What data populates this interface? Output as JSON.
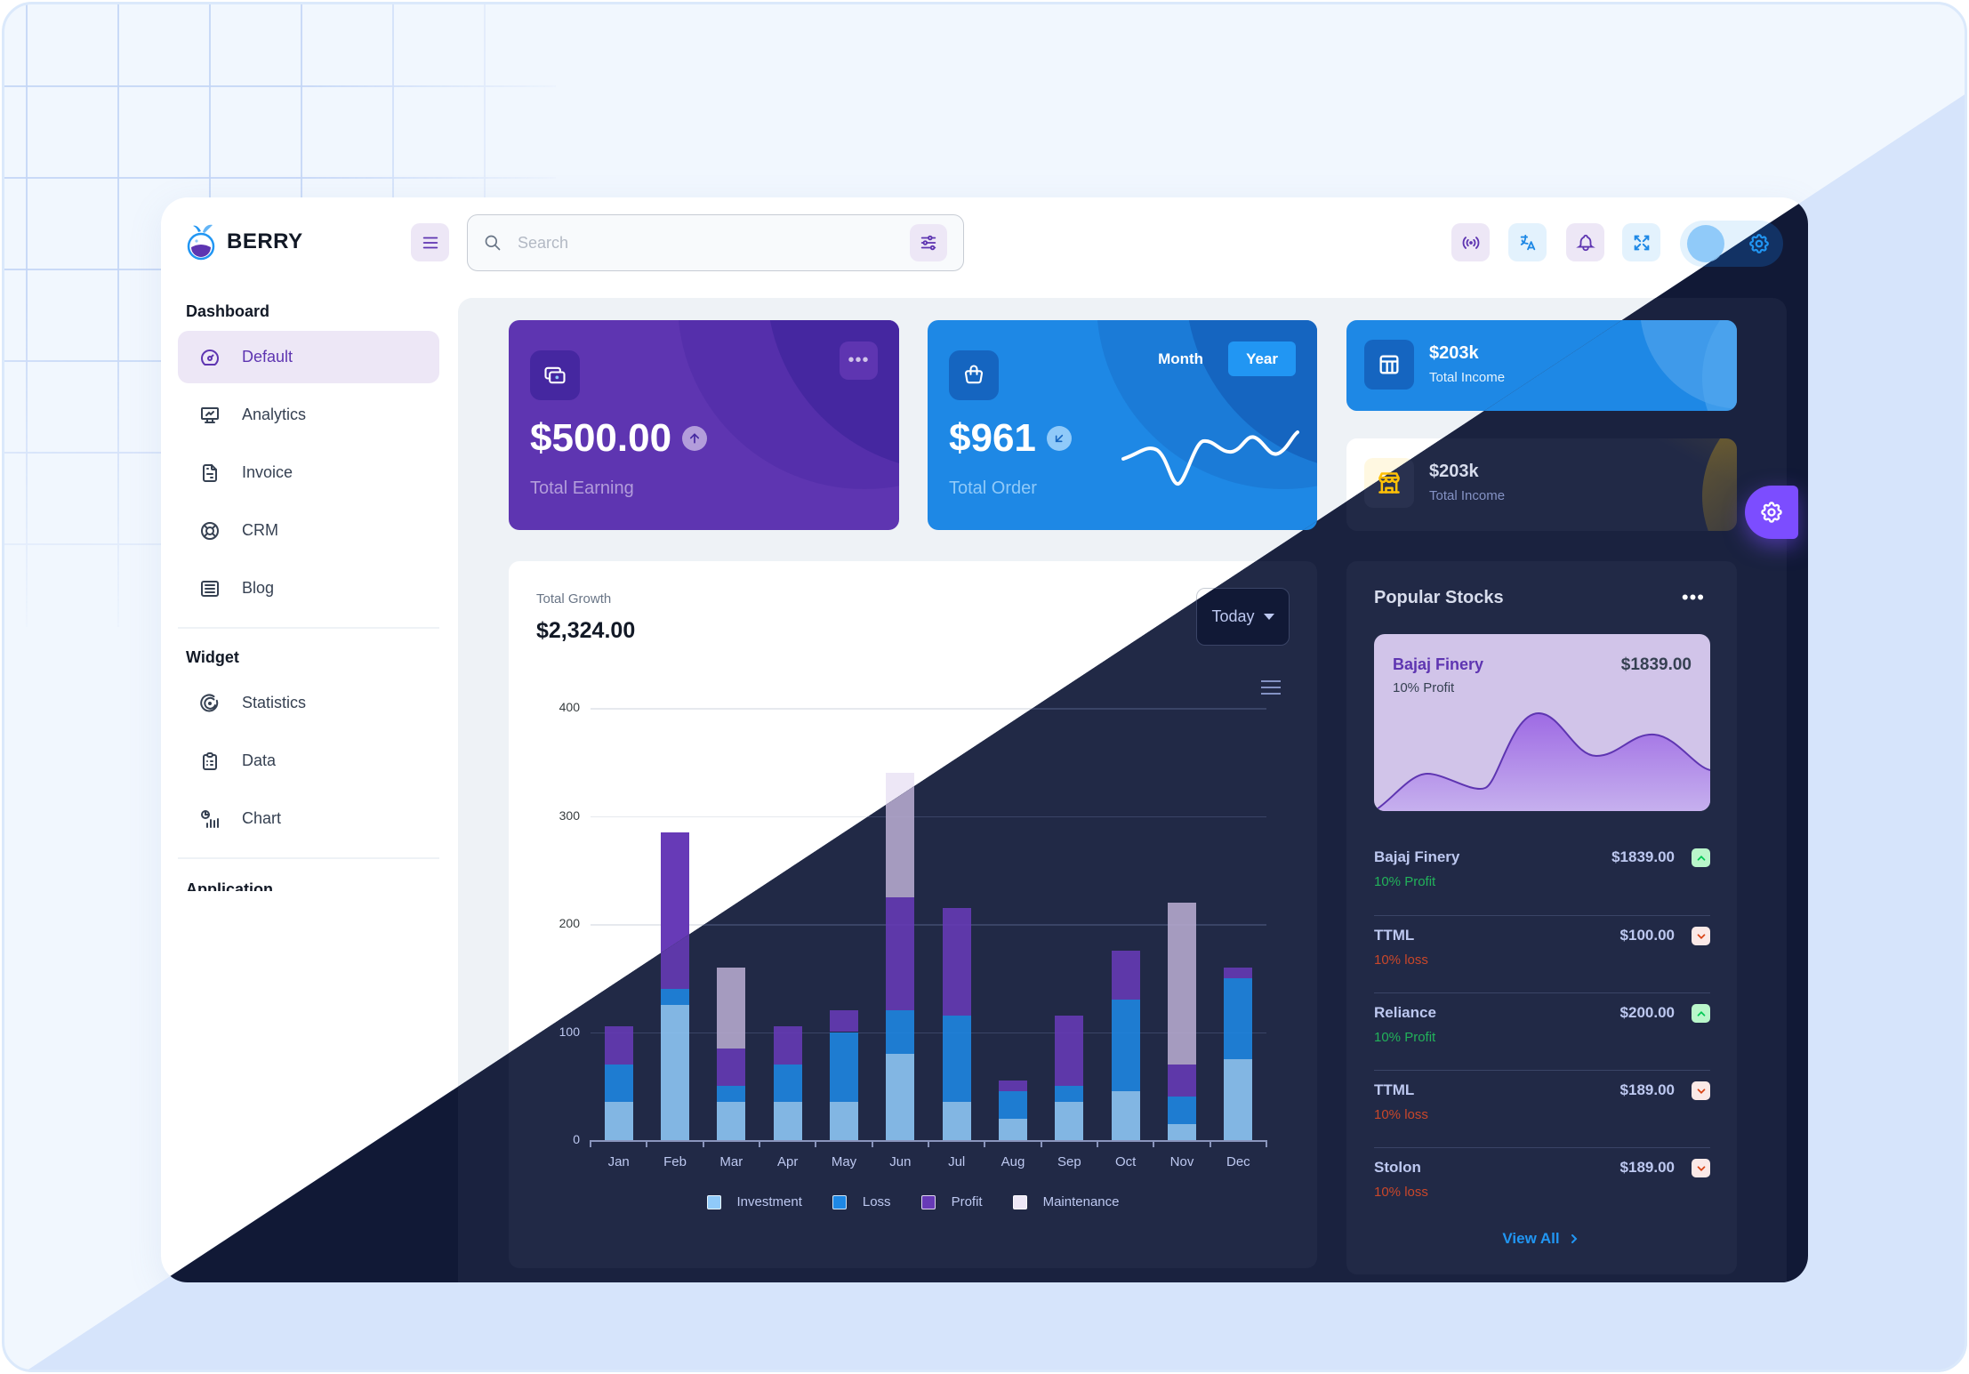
{
  "brand": {
    "name": "BERRY"
  },
  "header": {
    "search_placeholder": "Search",
    "icons": [
      "live-broadcast-icon",
      "translate-icon",
      "notification-bell-icon",
      "fullscreen-icon"
    ]
  },
  "sidebar": {
    "sections": [
      {
        "title": "Dashboard",
        "items": [
          {
            "label": "Default",
            "icon": "dashboard-gauge-icon",
            "active": true
          },
          {
            "label": "Analytics",
            "icon": "device-analytics-icon"
          },
          {
            "label": "Invoice",
            "icon": "file-invoice-icon"
          },
          {
            "label": "CRM",
            "icon": "lifebuoy-icon"
          },
          {
            "label": "Blog",
            "icon": "article-icon"
          }
        ]
      },
      {
        "title": "Widget",
        "items": [
          {
            "label": "Statistics",
            "icon": "chart-arcs-icon"
          },
          {
            "label": "Data",
            "icon": "clipboard-data-icon"
          },
          {
            "label": "Chart",
            "icon": "chart-infographic-icon"
          }
        ]
      }
    ],
    "partial_section": "Application"
  },
  "cards": {
    "earning": {
      "value": "$500.00",
      "label": "Total Earning",
      "trend": "up"
    },
    "order": {
      "value": "$961",
      "label": "Total Order",
      "trend": "down",
      "toggle": [
        "Month",
        "Year"
      ],
      "toggle_active": "Year"
    },
    "income_primary": {
      "value": "$203k",
      "label": "Total Income"
    },
    "income_secondary": {
      "value": "$203k",
      "label": "Total Income"
    }
  },
  "growth": {
    "subtitle": "Total Growth",
    "total": "$2,324.00",
    "period": "Today"
  },
  "chart_data": {
    "type": "bar",
    "stacked": true,
    "title": "Total Growth",
    "categories": [
      "Jan",
      "Feb",
      "Mar",
      "Apr",
      "May",
      "Jun",
      "Jul",
      "Aug",
      "Sep",
      "Oct",
      "Nov",
      "Dec"
    ],
    "series": [
      {
        "name": "Investment",
        "color": "#90caf9",
        "values": [
          35,
          125,
          35,
          35,
          35,
          80,
          35,
          20,
          35,
          45,
          15,
          75
        ]
      },
      {
        "name": "Loss",
        "color": "#1e88e5",
        "values": [
          35,
          15,
          15,
          35,
          65,
          40,
          80,
          25,
          15,
          85,
          25,
          75
        ]
      },
      {
        "name": "Profit",
        "color": "#673ab7",
        "values": [
          35,
          145,
          35,
          35,
          20,
          105,
          100,
          10,
          65,
          45,
          30,
          10
        ]
      },
      {
        "name": "Maintenance",
        "color": "#ede7f6",
        "values": [
          0,
          0,
          75,
          0,
          0,
          115,
          0,
          0,
          0,
          0,
          150,
          0
        ]
      }
    ],
    "yticks": [
      0,
      100,
      200,
      300,
      400
    ],
    "ylim": [
      0,
      400
    ],
    "xlabel": "",
    "ylabel": "",
    "grid": true,
    "legend_position": "bottom"
  },
  "stocks": {
    "title": "Popular Stocks",
    "featured": {
      "name": "Bajaj Finery",
      "sub": "10% Profit",
      "price": "$1839.00"
    },
    "rows": [
      {
        "name": "Bajaj Finery",
        "sub": "10% Profit",
        "price": "$1839.00",
        "dir": "up"
      },
      {
        "name": "TTML",
        "sub": "10% loss",
        "price": "$100.00",
        "dir": "down"
      },
      {
        "name": "Reliance",
        "sub": "10% Profit",
        "price": "$200.00",
        "dir": "up"
      },
      {
        "name": "TTML",
        "sub": "10% loss",
        "price": "$189.00",
        "dir": "down"
      },
      {
        "name": "Stolon",
        "sub": "10% loss",
        "price": "$189.00",
        "dir": "down"
      }
    ],
    "view_all": "View All"
  }
}
